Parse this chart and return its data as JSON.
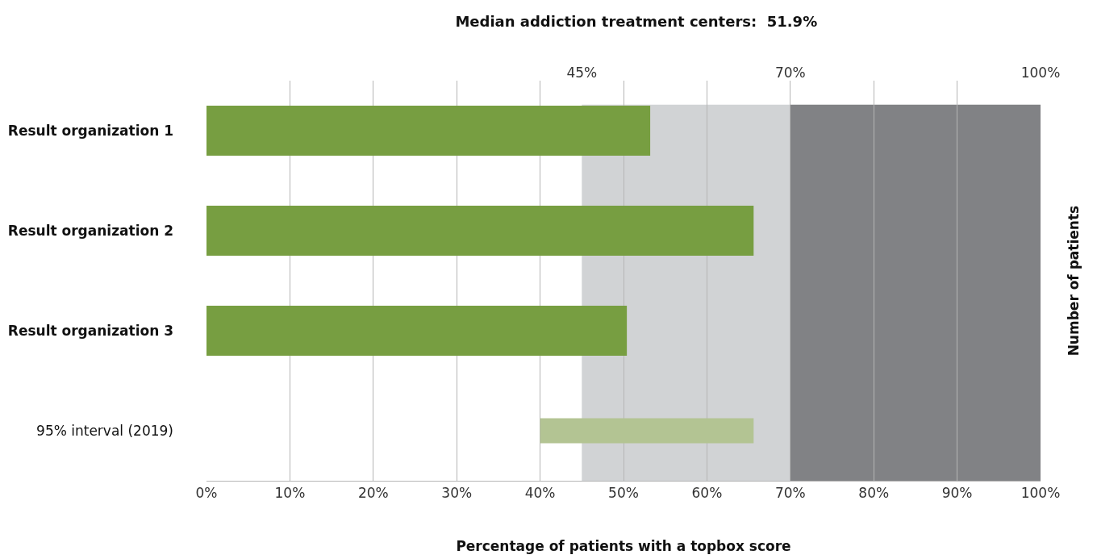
{
  "chart_data": {
    "type": "bar",
    "orientation": "horizontal",
    "title": "Median addiction treatment centers:  51.9%",
    "xlabel": "Percentage of patients with a topbox score",
    "y2label": "Number of patients",
    "categories": [
      "Result organization 1",
      "Result organization 2",
      "Result organization 3",
      "95% interval (2019)"
    ],
    "values": [
      53.2,
      65.6,
      50.4,
      25.6
    ],
    "base": [
      0,
      0,
      0,
      40
    ],
    "colors": [
      "#779e41",
      "#779e41",
      "#779e41",
      "#b3c493"
    ],
    "xlim": [
      0,
      100
    ],
    "xticks": [
      {
        "value": 0,
        "label": "0%"
      },
      {
        "value": 10,
        "label": "10%"
      },
      {
        "value": 20,
        "label": "20%"
      },
      {
        "value": 30,
        "label": "30%"
      },
      {
        "value": 40,
        "label": "40%"
      },
      {
        "value": 50,
        "label": "50%"
      },
      {
        "value": 60,
        "label": "60%"
      },
      {
        "value": 70,
        "label": "70%"
      },
      {
        "value": 80,
        "label": "80%"
      },
      {
        "value": 90,
        "label": "90%"
      },
      {
        "value": 100,
        "label": "100%"
      }
    ],
    "x2lim": [
      0,
      100
    ],
    "x2ticks": [
      {
        "value": 45,
        "label": "45%"
      },
      {
        "value": 70,
        "label": "70%"
      },
      {
        "value": 100,
        "label": "100%"
      }
    ],
    "bands": [
      {
        "axis": "x",
        "from": 45,
        "to": 70,
        "color": "#d1d3d5"
      },
      {
        "axis": "x",
        "from": 70,
        "to": 100,
        "color": "#818285"
      }
    ],
    "grid": "x"
  }
}
